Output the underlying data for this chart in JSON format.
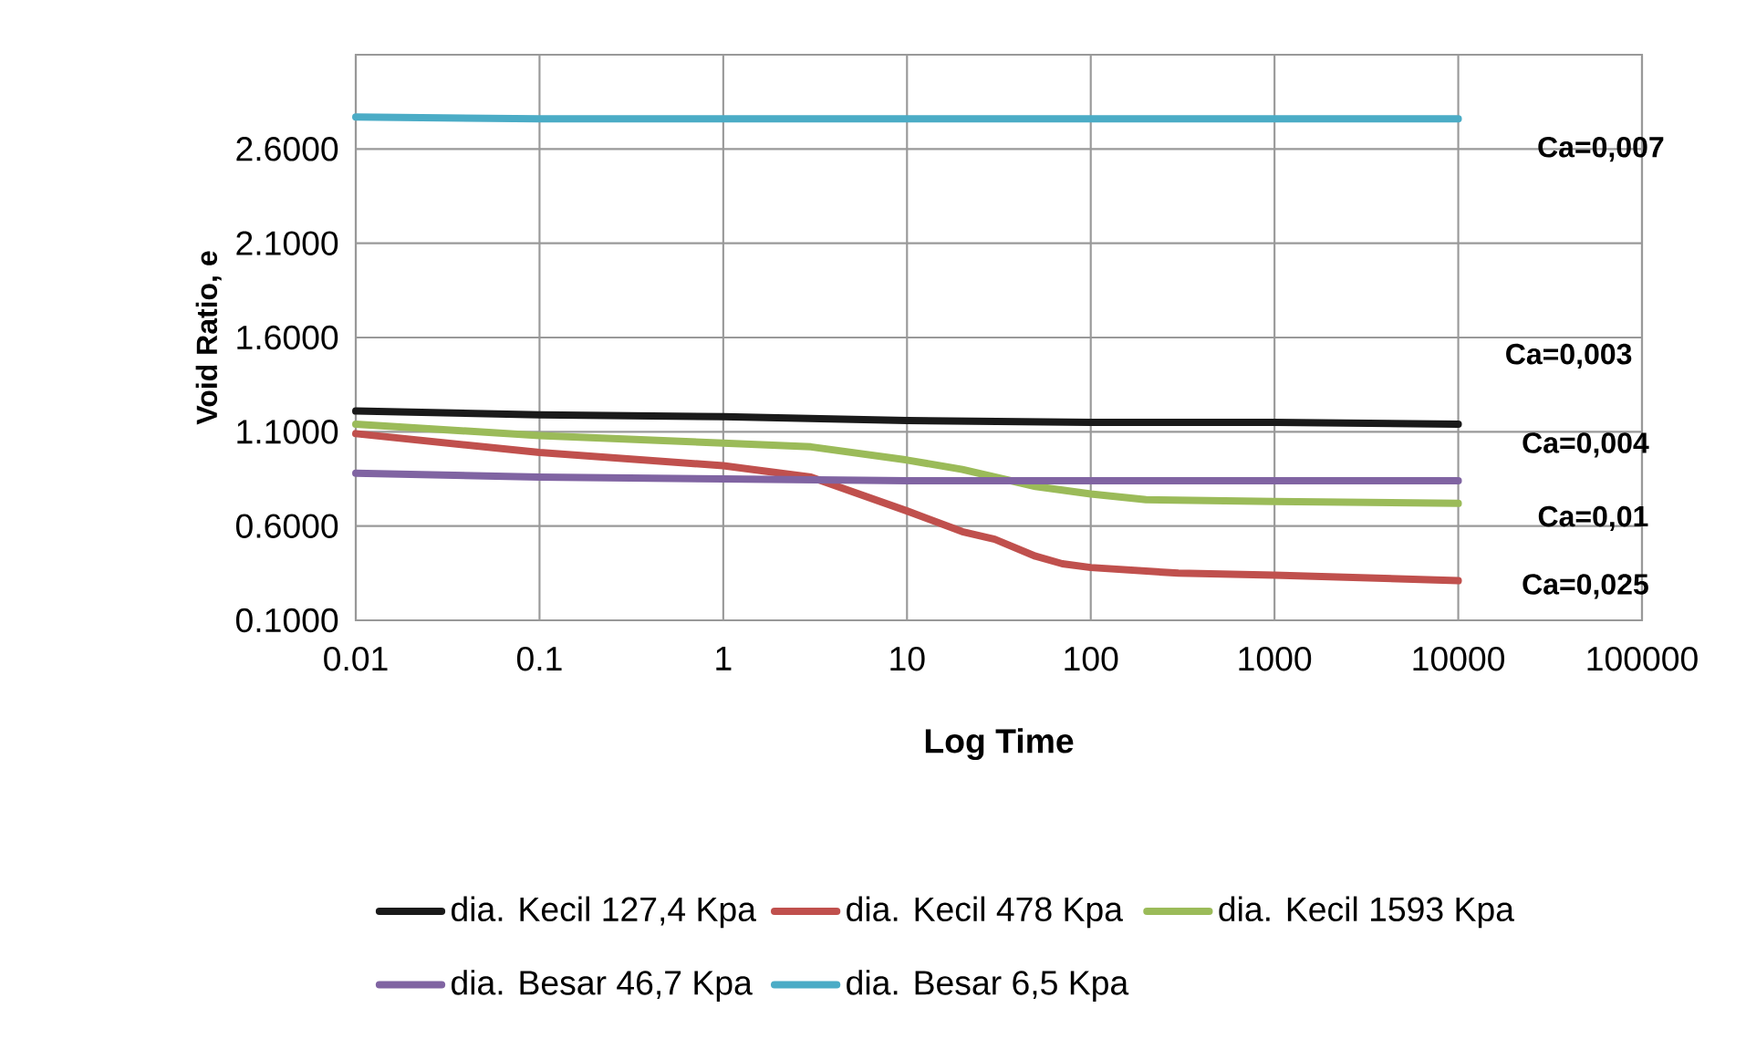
{
  "chart_data": {
    "type": "line",
    "xlabel": "Log  Time",
    "ylabel": "Void Ratio, e",
    "log": "x",
    "grid": true,
    "legend": "bottom",
    "line_style": "solid",
    "xlim": [
      0.01,
      100000
    ],
    "ylim": [
      0.1,
      3.1
    ],
    "xticks": [
      0.01,
      0.1,
      1,
      10,
      100,
      1000,
      10000,
      100000
    ],
    "yticks": [
      {
        "value": 0.1,
        "label": "0.1000"
      },
      {
        "value": 0.6,
        "label": "0.6000"
      },
      {
        "value": 1.1,
        "label": "1.1000"
      },
      {
        "value": 1.6,
        "label": "1.6000"
      },
      {
        "value": 2.1,
        "label": "2.1000"
      },
      {
        "value": 2.6,
        "label": "2.6000"
      },
      {
        "value": 3.1,
        "label": null
      }
    ],
    "series": [
      {
        "name": "dia. Kecil 127,4 Kpa",
        "color": "#1a1a1a",
        "x": [
          0.01,
          0.1,
          1,
          10,
          100,
          1000,
          10000
        ],
        "values": [
          1.21,
          1.19,
          1.18,
          1.16,
          1.15,
          1.15,
          1.14
        ]
      },
      {
        "name": "dia. Kecil 478 Kpa",
        "color": "#c0504d",
        "x": [
          0.01,
          0.1,
          1,
          3,
          10,
          20,
          30,
          50,
          70,
          100,
          300,
          1000,
          10000
        ],
        "values": [
          1.09,
          0.99,
          0.92,
          0.86,
          0.68,
          0.57,
          0.53,
          0.44,
          0.4,
          0.38,
          0.35,
          0.34,
          0.31
        ]
      },
      {
        "name": "dia. Kecil 1593 Kpa",
        "color": "#9bbb59",
        "x": [
          0.01,
          0.1,
          1,
          3,
          10,
          20,
          50,
          100,
          200,
          1000,
          10000
        ],
        "values": [
          1.14,
          1.08,
          1.04,
          1.02,
          0.95,
          0.9,
          0.81,
          0.77,
          0.74,
          0.73,
          0.72
        ]
      },
      {
        "name": "dia. Besar 46,7 Kpa",
        "color": "#8064a2",
        "x": [
          0.01,
          0.1,
          1,
          10,
          100,
          1000,
          10000
        ],
        "values": [
          0.88,
          0.86,
          0.85,
          0.84,
          0.84,
          0.84,
          0.84
        ]
      },
      {
        "name": "dia. Besar 6,5 Kpa",
        "color": "#4bacc6",
        "x": [
          0.01,
          0.1,
          1,
          10,
          100,
          1000,
          10000
        ],
        "values": [
          2.77,
          2.76,
          2.76,
          2.76,
          2.76,
          2.76,
          2.76
        ]
      }
    ],
    "annotations": [
      "Ca=0,007",
      "Ca=0,003",
      "Ca=0,004",
      "Ca=0,01",
      "Ca=0,025"
    ]
  }
}
